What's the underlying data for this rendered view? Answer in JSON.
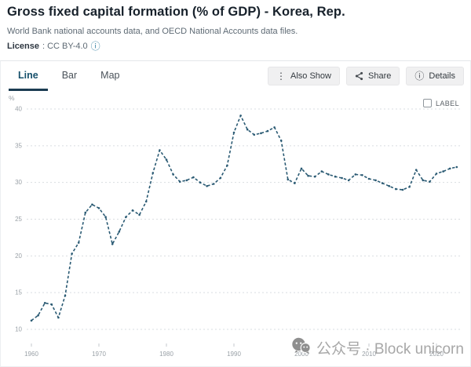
{
  "header": {
    "title": "Gross fixed capital formation (% of GDP) - Korea, Rep.",
    "subtitle": "World Bank national accounts data, and OECD National Accounts data files.",
    "license_label": "License",
    "license_value": ": CC BY-4.0"
  },
  "toolbar": {
    "tabs": [
      {
        "label": "Line",
        "active": true
      },
      {
        "label": "Bar",
        "active": false
      },
      {
        "label": "Map",
        "active": false
      }
    ],
    "buttons": [
      {
        "label": "Also Show",
        "icon": "kebab-menu-icon"
      },
      {
        "label": "Share",
        "icon": "share-icon"
      },
      {
        "label": "Details",
        "icon": "info-circle-icon"
      }
    ]
  },
  "icon_glyphs": {
    "kebab_menu": "⋮",
    "info_circle": "ⓘ"
  },
  "chart": {
    "label_checkbox": "LABEL",
    "unit_label": "%",
    "line_color": "#2a5a73",
    "grid_color": "#d9dde1",
    "axis_text_color": "#9aa1a7",
    "accent_color": "#16506b"
  },
  "watermark": {
    "icon": "wechat-icon",
    "text": "公众号 · Block unicorn"
  },
  "chart_data": {
    "type": "line",
    "title": "Gross fixed capital formation (% of GDP) - Korea, Rep.",
    "xlabel": "",
    "ylabel": "%",
    "ylim": [
      9,
      41
    ],
    "yticks": [
      10,
      15,
      20,
      25,
      30,
      35,
      40
    ],
    "xticks": [
      1960,
      1970,
      1980,
      1990,
      2000,
      2010,
      2020
    ],
    "grid": "horizontal-dashed",
    "legend": "none",
    "line_style": "dashed-with-point-markers",
    "x": [
      1960,
      1961,
      1962,
      1963,
      1964,
      1965,
      1966,
      1967,
      1968,
      1969,
      1970,
      1971,
      1972,
      1973,
      1974,
      1975,
      1976,
      1977,
      1978,
      1979,
      1980,
      1981,
      1982,
      1983,
      1984,
      1985,
      1986,
      1987,
      1988,
      1989,
      1990,
      1991,
      1992,
      1993,
      1994,
      1995,
      1996,
      1997,
      1998,
      1999,
      2000,
      2001,
      2002,
      2003,
      2004,
      2005,
      2006,
      2007,
      2008,
      2009,
      2010,
      2011,
      2012,
      2013,
      2014,
      2015,
      2016,
      2017,
      2018,
      2019,
      2020,
      2021,
      2022,
      2023
    ],
    "series": [
      {
        "name": "Korea, Rep.",
        "values": [
          11.2,
          11.9,
          13.6,
          13.4,
          11.6,
          14.6,
          20.3,
          21.8,
          25.9,
          27.0,
          26.5,
          25.3,
          21.6,
          23.3,
          25.3,
          26.2,
          25.6,
          27.4,
          31.3,
          34.4,
          33.1,
          31.1,
          30.1,
          30.3,
          30.7,
          30.0,
          29.5,
          29.8,
          30.6,
          32.3,
          36.8,
          39.1,
          37.2,
          36.5,
          36.7,
          37.0,
          37.5,
          35.7,
          30.4,
          29.9,
          31.9,
          30.9,
          30.8,
          31.5,
          31.1,
          30.8,
          30.6,
          30.3,
          31.1,
          31.0,
          30.5,
          30.3,
          29.9,
          29.5,
          29.1,
          29.0,
          29.4,
          31.7,
          30.3,
          30.1,
          31.2,
          31.5,
          31.9,
          32.1
        ]
      }
    ]
  }
}
